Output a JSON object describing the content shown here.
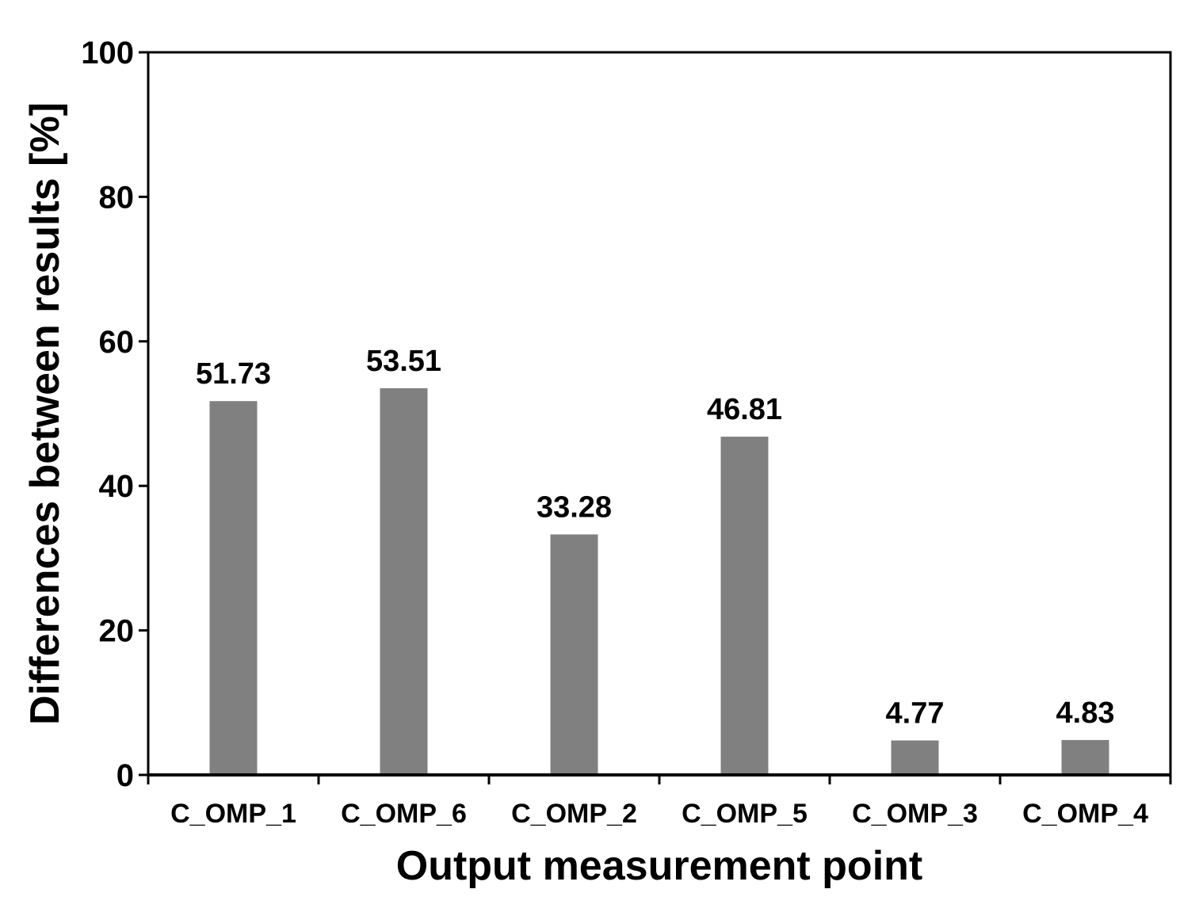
{
  "chart_data": {
    "type": "bar",
    "title": "",
    "xlabel": "Output measurement point",
    "ylabel": "Differences between results [%]",
    "categories": [
      "C_OMP_1",
      "C_OMP_6",
      "C_OMP_2",
      "C_OMP_5",
      "C_OMP_3",
      "C_OMP_4"
    ],
    "values": [
      51.73,
      53.51,
      33.28,
      46.81,
      4.77,
      4.83
    ],
    "value_labels": [
      "51.73",
      "53.51",
      "33.28",
      "46.81",
      "4.77",
      "4.83"
    ],
    "ylim": [
      0,
      100
    ],
    "yticks": [
      0,
      20,
      40,
      60,
      80,
      100
    ],
    "ytick_labels": [
      "0",
      "20",
      "40",
      "60",
      "80",
      "100"
    ],
    "grid": false,
    "legend": "none",
    "bar_color": "#808080"
  }
}
